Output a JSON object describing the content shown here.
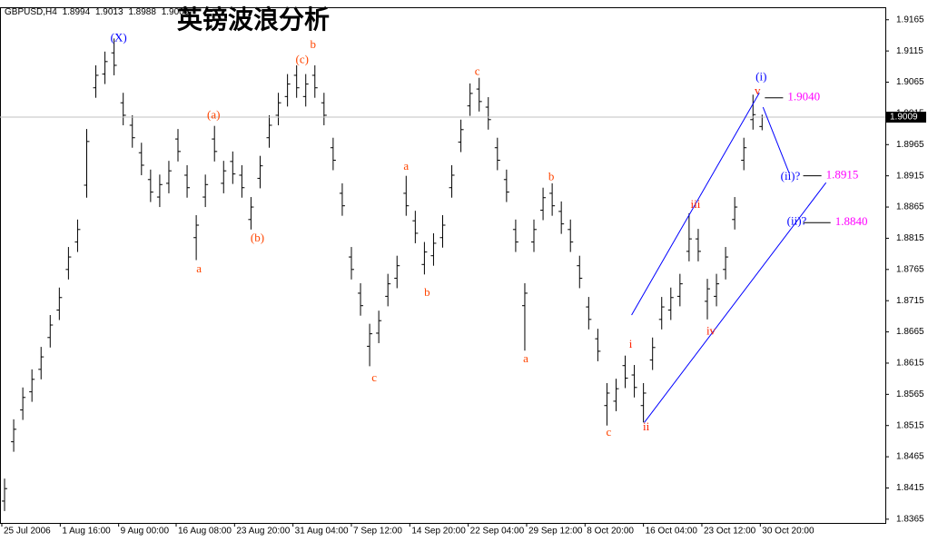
{
  "chart_data": {
    "type": "ohlc",
    "title": "英镑波浪分析",
    "symbol": "GBPUSD,H4",
    "bar_color": "#000000",
    "xlim": [
      -0.5,
      96.5
    ],
    "ylim": [
      1.8359,
      1.9185
    ],
    "yticks": [
      1.9165,
      1.9115,
      1.9065,
      1.9015,
      1.8965,
      1.8915,
      1.8865,
      1.8815,
      1.8765,
      1.8715,
      1.8665,
      1.8615,
      1.8565,
      1.8515,
      1.8465,
      1.8415,
      1.8365
    ],
    "xticks": [
      {
        "value": -0.3,
        "label": "25 Jul 2006"
      },
      {
        "value": 6.1,
        "label": "1 Aug 16:00"
      },
      {
        "value": 12.5,
        "label": "9 Aug 00:00"
      },
      {
        "value": 18.8,
        "label": "16 Aug 08:00"
      },
      {
        "value": 25.2,
        "label": "23 Aug 20:00"
      },
      {
        "value": 31.6,
        "label": "31 Aug 04:00"
      },
      {
        "value": 38,
        "label": "7 Sep 12:00"
      },
      {
        "value": 44.4,
        "label": "14 Sep 20:00"
      },
      {
        "value": 50.8,
        "label": "22 Sep 04:00"
      },
      {
        "value": 57.2,
        "label": "29 Sep 12:00"
      },
      {
        "value": 63.6,
        "label": "8 Oct 20:00"
      },
      {
        "value": 70,
        "label": "16 Oct 04:00"
      },
      {
        "value": 76.4,
        "label": "23 Oct 12:00"
      },
      {
        "value": 82.8,
        "label": "30 Oct 20:00"
      }
    ],
    "open": [
      1.8394,
      1.8489,
      1.854,
      1.8569,
      1.8605,
      1.8656,
      1.87,
      1.8765,
      1.8809,
      1.89,
      1.9056,
      1.9078,
      1.9112,
      1.9032,
      1.8996,
      1.8952,
      1.8909,
      1.8881,
      1.8903,
      1.8974,
      1.8916,
      1.8816,
      1.8881,
      1.8974,
      1.8903,
      1.8938,
      1.8916,
      1.8845,
      1.8911,
      1.8976,
      1.9012,
      1.9042,
      1.9076,
      1.9042,
      1.9076,
      1.9032,
      1.896,
      1.8887,
      1.8785,
      1.8727,
      1.8642,
      1.8663,
      1.8722,
      1.8751,
      1.8887,
      1.8843,
      1.8773,
      1.8787,
      1.8816,
      1.8896,
      1.8969,
      1.9027,
      1.9054,
      1.9025,
      1.896,
      1.8909,
      1.8829,
      1.8707,
      1.8809,
      1.886,
      1.8887,
      1.8858,
      1.8829,
      1.8771,
      1.8705,
      1.8654,
      1.8547,
      1.8554,
      1.8611,
      1.8596,
      1.8547,
      1.862,
      1.8685,
      1.87,
      1.8722,
      1.8794,
      1.8814,
      1.8714,
      1.8722,
      1.8765,
      1.8845,
      1.894,
      1.9005,
      1.8994
    ],
    "high": [
      1.843,
      1.8525,
      1.8576,
      1.8605,
      1.8641,
      1.8692,
      1.8736,
      1.8801,
      1.8845,
      1.899,
      1.9092,
      1.9114,
      1.9135,
      1.9048,
      1.9012,
      1.8968,
      1.8925,
      1.8917,
      1.8939,
      1.899,
      1.8932,
      1.8852,
      1.8917,
      1.8995,
      1.8939,
      1.8954,
      1.8932,
      1.8881,
      1.8947,
      1.9012,
      1.9048,
      1.9078,
      1.9092,
      1.9078,
      1.9092,
      1.9048,
      1.8976,
      1.8903,
      1.8801,
      1.8743,
      1.8678,
      1.8699,
      1.8758,
      1.8787,
      1.8915,
      1.8859,
      1.8809,
      1.8823,
      1.8852,
      1.8932,
      1.9005,
      1.9063,
      1.9072,
      1.9041,
      1.8976,
      1.8925,
      1.8845,
      1.8743,
      1.8845,
      1.8896,
      1.8903,
      1.8874,
      1.8845,
      1.8787,
      1.8721,
      1.867,
      1.8583,
      1.859,
      1.8627,
      1.8612,
      1.8583,
      1.8656,
      1.8721,
      1.8736,
      1.8758,
      1.8855,
      1.883,
      1.875,
      1.8758,
      1.8801,
      1.8881,
      1.8976,
      1.9045,
      1.9013
    ],
    "low": [
      1.8378,
      1.8473,
      1.8524,
      1.8553,
      1.8589,
      1.864,
      1.8684,
      1.8749,
      1.8793,
      1.888,
      1.904,
      1.9062,
      1.9076,
      1.8996,
      1.896,
      1.8916,
      1.8873,
      1.8865,
      1.8887,
      1.8938,
      1.888,
      1.878,
      1.8865,
      1.8938,
      1.8887,
      1.8902,
      1.888,
      1.8829,
      1.8895,
      1.896,
      1.8996,
      1.9026,
      1.904,
      1.9026,
      1.904,
      1.8996,
      1.8924,
      1.8851,
      1.8749,
      1.8691,
      1.861,
      1.8647,
      1.8706,
      1.8735,
      1.8851,
      1.8807,
      1.8757,
      1.8771,
      1.88,
      1.888,
      1.8953,
      1.9011,
      1.9018,
      1.8989,
      1.8924,
      1.8873,
      1.8793,
      1.8635,
      1.8793,
      1.8844,
      1.8851,
      1.8822,
      1.8793,
      1.8735,
      1.8669,
      1.8618,
      1.8515,
      1.8538,
      1.8575,
      1.856,
      1.852,
      1.8604,
      1.8669,
      1.8684,
      1.8706,
      1.8778,
      1.8778,
      1.8685,
      1.8706,
      1.8749,
      1.8829,
      1.8924,
      1.8989,
      1.8988
    ],
    "close": [
      1.8414,
      1.8509,
      1.856,
      1.8589,
      1.8625,
      1.8676,
      1.872,
      1.8785,
      1.8829,
      1.897,
      1.9076,
      1.9098,
      1.9092,
      1.9012,
      1.8976,
      1.8932,
      1.8889,
      1.8901,
      1.8923,
      1.8954,
      1.8896,
      1.8836,
      1.8901,
      1.8954,
      1.8923,
      1.8918,
      1.8896,
      1.8865,
      1.8931,
      1.8996,
      1.9032,
      1.9062,
      1.9056,
      1.9062,
      1.9056,
      1.9012,
      1.894,
      1.8867,
      1.8765,
      1.8707,
      1.8662,
      1.8683,
      1.8742,
      1.8771,
      1.8867,
      1.8823,
      1.8793,
      1.8807,
      1.8836,
      1.8916,
      1.8989,
      1.9047,
      1.9034,
      1.9005,
      1.894,
      1.8889,
      1.8809,
      1.8727,
      1.8829,
      1.888,
      1.8867,
      1.8838,
      1.8809,
      1.8751,
      1.8685,
      1.8634,
      1.8567,
      1.8574,
      1.8591,
      1.8576,
      1.8567,
      1.864,
      1.8705,
      1.872,
      1.8742,
      1.8814,
      1.8794,
      1.8734,
      1.8742,
      1.8785,
      1.8865,
      1.896,
      1.9013,
      1.9009
    ],
    "line_color": "#0000ff",
    "lines": [
      {
        "x": [
          68.7,
          82.7
        ],
        "y": [
          1.8692,
          1.9048
        ]
      },
      {
        "x": [
          70.1,
          90
        ],
        "y": [
          1.852,
          1.8904
        ]
      },
      {
        "x": [
          83.1,
          86
        ],
        "y": [
          1.9025,
          1.8918
        ]
      }
    ],
    "target_color": "#ff00ff",
    "targets": [
      {
        "value": 1.904,
        "label": "1.9040",
        "x": [
          83.3,
          85.3
        ]
      },
      {
        "value": 1.8915,
        "label": "1.8915",
        "x": [
          87.5,
          89.5
        ]
      },
      {
        "value": 1.884,
        "label": "1.8840",
        "x": [
          87.5,
          90.5
        ]
      }
    ],
    "annotations": [
      {
        "text": "(X)",
        "x": 12.5,
        "y": 1.9135,
        "color": "#0000ff"
      },
      {
        "text": "a",
        "x": 21.3,
        "y": 1.8765,
        "color": "#ff4500"
      },
      {
        "text": "(a)",
        "x": 22.9,
        "y": 1.9011,
        "color": "#ff4500"
      },
      {
        "text": "(b)",
        "x": 27.7,
        "y": 1.8814,
        "color": "#ff4500"
      },
      {
        "text": "(c)",
        "x": 32.6,
        "y": 1.91,
        "color": "#ff4500"
      },
      {
        "text": "b",
        "x": 33.8,
        "y": 1.9124,
        "color": "#ff4500"
      },
      {
        "text": "c",
        "x": 40.5,
        "y": 1.859,
        "color": "#ff4500"
      },
      {
        "text": "a",
        "x": 44,
        "y": 1.8929,
        "color": "#ff4500"
      },
      {
        "text": "b",
        "x": 46.3,
        "y": 1.8727,
        "color": "#ff4500"
      },
      {
        "text": "c",
        "x": 51.8,
        "y": 1.9081,
        "color": "#ff4500"
      },
      {
        "text": "a",
        "x": 57.1,
        "y": 1.8621,
        "color": "#ff4500"
      },
      {
        "text": "b",
        "x": 59.9,
        "y": 1.8912,
        "color": "#ff4500"
      },
      {
        "text": "c",
        "x": 66.2,
        "y": 1.8503,
        "color": "#ff4500"
      },
      {
        "text": "i",
        "x": 68.6,
        "y": 1.8644,
        "color": "#ff2000"
      },
      {
        "text": "ii",
        "x": 70.3,
        "y": 1.8512,
        "color": "#ff2000"
      },
      {
        "text": "iii",
        "x": 75.7,
        "y": 1.8868,
        "color": "#ff2000"
      },
      {
        "text": "iv",
        "x": 77.4,
        "y": 1.8665,
        "color": "#ff2000"
      },
      {
        "text": "v",
        "x": 82.5,
        "y": 1.905,
        "color": "#ff2000"
      },
      {
        "text": "(i)",
        "x": 82.9,
        "y": 1.9072,
        "color": "#0000ff"
      },
      {
        "text": "(ii)?",
        "x": 86.1,
        "y": 1.8913,
        "color": "#0000ff"
      },
      {
        "text": "(ii)?",
        "x": 86.8,
        "y": 1.8841,
        "color": "#0000ff"
      }
    ]
  }
}
